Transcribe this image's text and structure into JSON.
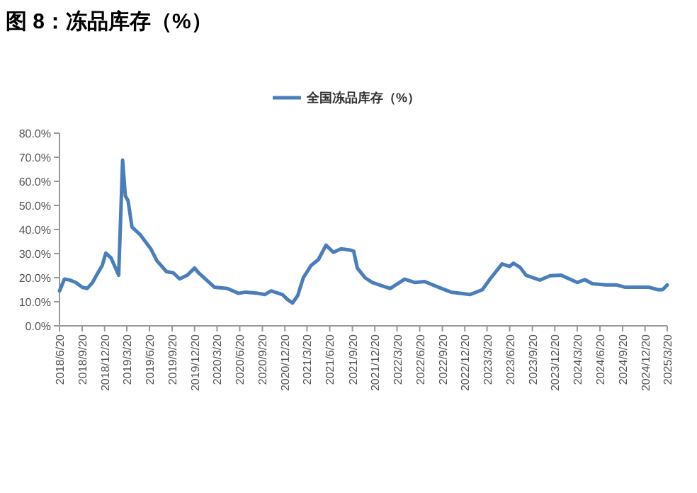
{
  "chart_data": {
    "type": "line",
    "title": "图 8：冻品库存（%）",
    "legend": "top",
    "grid": false,
    "marker": "none",
    "line_style": "solid",
    "xlim": [
      "2018-06-20",
      "2025-03-20"
    ],
    "xticks": [
      {
        "value": "2018-06-20",
        "label": "2018/6/20"
      },
      {
        "value": "2018-09-20",
        "label": "2018/9/20"
      },
      {
        "value": "2018-12-20",
        "label": "2018/12/20"
      },
      {
        "value": "2019-03-20",
        "label": "2019/3/20"
      },
      {
        "value": "2019-06-20",
        "label": "2019/6/20"
      },
      {
        "value": "2019-09-20",
        "label": "2019/9/20"
      },
      {
        "value": "2019-12-20",
        "label": "2019/12/20"
      },
      {
        "value": "2020-03-20",
        "label": "2020/3/20"
      },
      {
        "value": "2020-06-20",
        "label": "2020/6/20"
      },
      {
        "value": "2020-09-20",
        "label": "2020/9/20"
      },
      {
        "value": "2020-12-20",
        "label": "2020/12/20"
      },
      {
        "value": "2021-03-20",
        "label": "2021/3/20"
      },
      {
        "value": "2021-06-20",
        "label": "2021/6/20"
      },
      {
        "value": "2021-09-20",
        "label": "2021/9/20"
      },
      {
        "value": "2021-12-20",
        "label": "2021/12/20"
      },
      {
        "value": "2022-03-20",
        "label": "2022/3/20"
      },
      {
        "value": "2022-06-20",
        "label": "2022/6/20"
      },
      {
        "value": "2022-09-20",
        "label": "2022/9/20"
      },
      {
        "value": "2022-12-20",
        "label": "2022/12/20"
      },
      {
        "value": "2023-03-20",
        "label": "2023/3/20"
      },
      {
        "value": "2023-06-20",
        "label": "2023/6/20"
      },
      {
        "value": "2023-09-20",
        "label": "2023/9/20"
      },
      {
        "value": "2023-12-20",
        "label": "2023/12/20"
      },
      {
        "value": "2024-03-20",
        "label": "2024/3/20"
      },
      {
        "value": "2024-06-20",
        "label": "2024/6/20"
      },
      {
        "value": "2024-09-20",
        "label": "2024/9/20"
      },
      {
        "value": "2024-12-20",
        "label": "2024/12/20"
      },
      {
        "value": "2025-03-20",
        "label": "2025/3/20"
      }
    ],
    "ylim": [
      0,
      80
    ],
    "yticks": [
      {
        "value": 0,
        "label": "0.0%"
      },
      {
        "value": 10,
        "label": "10.0%"
      },
      {
        "value": 20,
        "label": "20.0%"
      },
      {
        "value": 30,
        "label": "30.0%"
      },
      {
        "value": 40,
        "label": "40.0%"
      },
      {
        "value": 50,
        "label": "50.0%"
      },
      {
        "value": 60,
        "label": "60.0%"
      },
      {
        "value": 70,
        "label": "70.0%"
      },
      {
        "value": 80,
        "label": "80.0%"
      }
    ],
    "x": [
      "2018-06-20",
      "2018-07-10",
      "2018-08-01",
      "2018-08-25",
      "2018-09-20",
      "2018-10-10",
      "2018-11-01",
      "2018-11-25",
      "2018-12-10",
      "2018-12-25",
      "2019-01-15",
      "2019-02-15",
      "2019-03-03",
      "2019-03-14",
      "2019-03-25",
      "2019-04-10",
      "2019-05-12",
      "2019-06-25",
      "2019-07-20",
      "2019-08-28",
      "2019-09-25",
      "2019-10-20",
      "2019-11-20",
      "2019-12-20",
      "2020-01-05",
      "2020-02-01",
      "2020-03-10",
      "2020-05-01",
      "2020-06-15",
      "2020-07-15",
      "2020-09-01",
      "2020-09-30",
      "2020-10-25",
      "2020-12-10",
      "2020-12-30",
      "2021-01-20",
      "2021-02-10",
      "2021-03-05",
      "2021-04-05",
      "2021-05-05",
      "2021-06-05",
      "2021-07-05",
      "2021-08-05",
      "2021-09-10",
      "2021-09-25",
      "2021-10-10",
      "2021-11-10",
      "2021-12-10",
      "2022-02-20",
      "2022-04-20",
      "2022-06-01",
      "2022-07-10",
      "2022-09-05",
      "2022-10-25",
      "2023-01-10",
      "2023-03-01",
      "2023-04-01",
      "2023-05-20",
      "2023-06-20",
      "2023-07-05",
      "2023-08-01",
      "2023-08-25",
      "2023-10-20",
      "2023-12-01",
      "2024-01-15",
      "2024-03-20",
      "2024-04-20",
      "2024-05-20",
      "2024-07-15",
      "2024-08-25",
      "2024-10-01",
      "2024-12-01",
      "2025-01-05",
      "2025-02-10",
      "2025-03-01",
      "2025-03-20"
    ],
    "series": [
      {
        "name": "全国冻品库存（%）",
        "color": "#4a7ebb",
        "values": [
          14.5,
          19.4,
          19,
          18,
          16,
          15.5,
          18,
          22.4,
          25,
          30.2,
          28.2,
          21,
          68.8,
          54,
          52,
          41,
          38,
          32,
          27,
          22.5,
          22,
          19.5,
          21,
          24,
          22,
          19.5,
          16,
          15.5,
          13.5,
          14,
          13.5,
          13,
          14.5,
          13,
          11,
          9.5,
          12.5,
          20,
          25,
          27.5,
          33.5,
          30.5,
          32,
          31.5,
          31,
          24,
          20,
          18,
          15.5,
          19.4,
          18,
          18.4,
          16,
          14,
          13,
          15,
          19.4,
          25.7,
          24.7,
          26,
          24.3,
          21,
          19,
          20.8,
          21,
          18,
          19.2,
          17.5,
          17,
          17,
          16,
          16,
          16,
          15,
          15,
          17
        ]
      }
    ]
  }
}
